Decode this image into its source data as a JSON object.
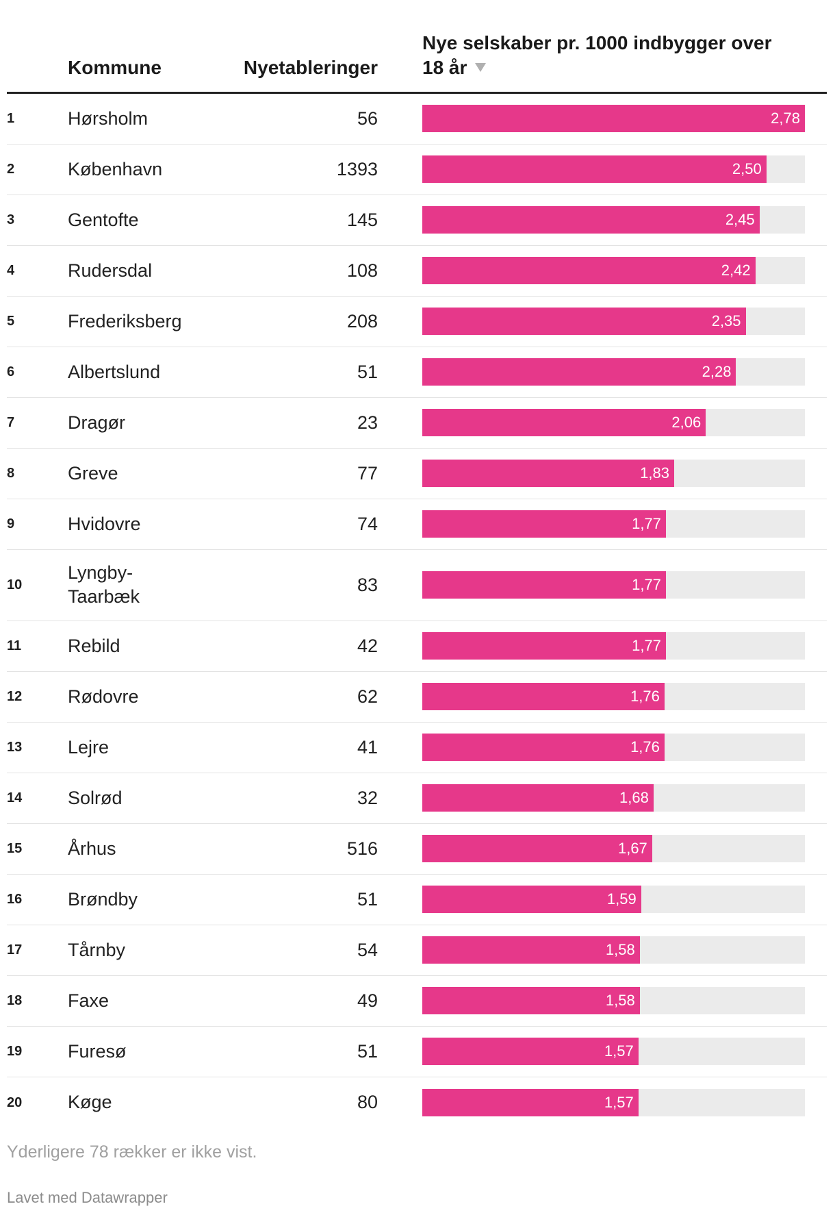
{
  "chart_data": {
    "type": "table",
    "columns": {
      "kommune": "Kommune",
      "nyetableringer": "Nyetableringer",
      "rate": "Nye selskaber pr. 1000 indbygger over 18 år"
    },
    "sort": {
      "column": "rate",
      "direction": "descending",
      "icon": "sort-descending-icon"
    },
    "value_range": [
      0,
      2.78
    ],
    "rows": [
      {
        "rank": "1",
        "kommune": "Hørsholm",
        "nyetableringer": "56",
        "value": 2.78,
        "label": "2,78"
      },
      {
        "rank": "2",
        "kommune": "København",
        "nyetableringer": "1393",
        "value": 2.5,
        "label": "2,50"
      },
      {
        "rank": "3",
        "kommune": "Gentofte",
        "nyetableringer": "145",
        "value": 2.45,
        "label": "2,45"
      },
      {
        "rank": "4",
        "kommune": "Rudersdal",
        "nyetableringer": "108",
        "value": 2.42,
        "label": "2,42"
      },
      {
        "rank": "5",
        "kommune": "Frederiksberg",
        "nyetableringer": "208",
        "value": 2.35,
        "label": "2,35"
      },
      {
        "rank": "6",
        "kommune": "Albertslund",
        "nyetableringer": "51",
        "value": 2.28,
        "label": "2,28"
      },
      {
        "rank": "7",
        "kommune": "Dragør",
        "nyetableringer": "23",
        "value": 2.06,
        "label": "2,06"
      },
      {
        "rank": "8",
        "kommune": "Greve",
        "nyetableringer": "77",
        "value": 1.83,
        "label": "1,83"
      },
      {
        "rank": "9",
        "kommune": "Hvidovre",
        "nyetableringer": "74",
        "value": 1.77,
        "label": "1,77"
      },
      {
        "rank": "10",
        "kommune": "Lyngby-Taarbæk",
        "nyetableringer": "83",
        "value": 1.77,
        "label": "1,77"
      },
      {
        "rank": "11",
        "kommune": "Rebild",
        "nyetableringer": "42",
        "value": 1.77,
        "label": "1,77"
      },
      {
        "rank": "12",
        "kommune": "Rødovre",
        "nyetableringer": "62",
        "value": 1.76,
        "label": "1,76"
      },
      {
        "rank": "13",
        "kommune": "Lejre",
        "nyetableringer": "41",
        "value": 1.76,
        "label": "1,76"
      },
      {
        "rank": "14",
        "kommune": "Solrød",
        "nyetableringer": "32",
        "value": 1.68,
        "label": "1,68"
      },
      {
        "rank": "15",
        "kommune": "Århus",
        "nyetableringer": "516",
        "value": 1.67,
        "label": "1,67"
      },
      {
        "rank": "16",
        "kommune": "Brøndby",
        "nyetableringer": "51",
        "value": 1.59,
        "label": "1,59"
      },
      {
        "rank": "17",
        "kommune": "Tårnby",
        "nyetableringer": "54",
        "value": 1.58,
        "label": "1,58"
      },
      {
        "rank": "18",
        "kommune": "Faxe",
        "nyetableringer": "49",
        "value": 1.58,
        "label": "1,58"
      },
      {
        "rank": "19",
        "kommune": "Furesø",
        "nyetableringer": "51",
        "value": 1.57,
        "label": "1,57"
      },
      {
        "rank": "20",
        "kommune": "Køge",
        "nyetableringer": "80",
        "value": 1.57,
        "label": "1,57"
      }
    ]
  },
  "footer": {
    "note": "Yderligere 78 rækker er ikke vist.",
    "credit": "Lavet med Datawrapper"
  },
  "colors": {
    "bar": "#e6388a",
    "track": "#ebebeb"
  }
}
